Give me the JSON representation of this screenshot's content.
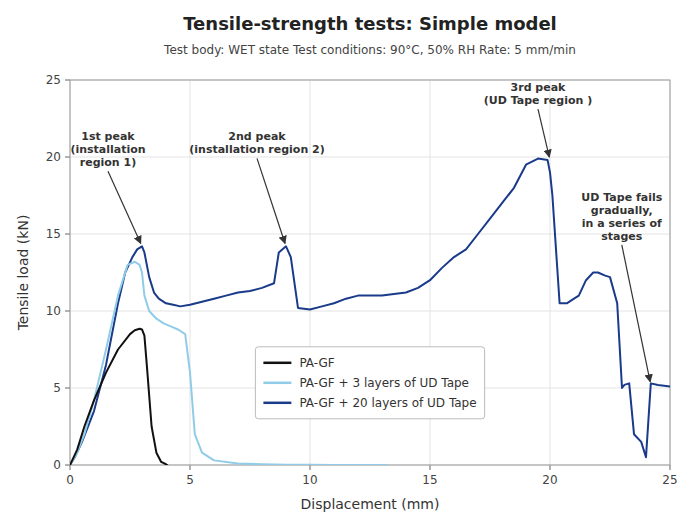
{
  "chart_data": {
    "type": "line",
    "title": "Tensile-strength tests: Simple model",
    "subtitle": "Test body: WET state   Test conditions: 90°C, 50% RH   Rate: 5 mm/min",
    "x_label": "Displacement  (mm)",
    "y_label": "Tensile load  (kN)",
    "xlim": [
      0,
      25
    ],
    "ylim": [
      0,
      25
    ],
    "xticks": [
      0,
      5,
      10,
      15,
      20,
      25
    ],
    "yticks": [
      0,
      5,
      10,
      15,
      20,
      25
    ],
    "grid": true,
    "legend": "lower center",
    "series": [
      {
        "name": "PA-GF",
        "color": "#111111",
        "x": [
          0,
          0.3,
          0.6,
          1.0,
          1.5,
          2.0,
          2.5,
          2.7,
          2.9,
          3.0,
          3.1,
          3.2,
          3.4,
          3.6,
          3.8,
          4.0,
          4.05
        ],
        "values": [
          0,
          1.0,
          2.5,
          4.2,
          6.0,
          7.5,
          8.5,
          8.75,
          8.85,
          8.8,
          8.4,
          6.5,
          2.5,
          0.8,
          0.2,
          0.05,
          0.0
        ]
      },
      {
        "name": "PA-GF + 3 layers of UD Tape",
        "color": "#90cce8",
        "x": [
          0,
          0.3,
          0.6,
          1.0,
          1.5,
          2.0,
          2.4,
          2.7,
          2.9,
          3.0,
          3.1,
          3.3,
          3.6,
          3.9,
          4.2,
          4.5,
          4.8,
          5.0,
          5.2,
          5.5,
          6.0,
          7.0,
          8.0,
          9.0,
          10.0,
          11.0,
          12.0,
          12.8,
          13.2
        ],
        "values": [
          0,
          0.8,
          2.0,
          4.2,
          7.5,
          11.0,
          13.0,
          13.2,
          13.0,
          12.5,
          11.0,
          10.0,
          9.5,
          9.2,
          9.0,
          8.8,
          8.5,
          6.0,
          2.0,
          0.8,
          0.3,
          0.1,
          0.05,
          0.02,
          0.01,
          0.005,
          0.002,
          0.001,
          0.0
        ]
      },
      {
        "name": "PA-GF + 20 layers of UD Tape",
        "color": "#1a3a8a",
        "x": [
          0,
          0.2,
          0.5,
          1.0,
          1.5,
          2.0,
          2.3,
          2.6,
          2.8,
          3.0,
          3.1,
          3.3,
          3.5,
          3.7,
          4.0,
          4.3,
          4.6,
          5.0,
          5.5,
          6.0,
          6.5,
          7.0,
          7.5,
          8.0,
          8.5,
          8.7,
          9.0,
          9.2,
          9.5,
          10.0,
          10.5,
          11.0,
          11.5,
          12.0,
          12.5,
          13.0,
          13.5,
          14.0,
          14.5,
          15.0,
          15.5,
          16.0,
          16.5,
          17.0,
          17.5,
          18.0,
          18.5,
          19.0,
          19.5,
          19.9,
          20.0,
          20.1,
          20.4,
          20.7,
          21.0,
          21.2,
          21.5,
          21.8,
          22.0,
          22.3,
          22.5,
          22.8,
          23.0,
          23.1,
          23.3,
          23.5,
          23.8,
          24.0,
          24.2,
          24.5,
          25.0
        ],
        "values": [
          0,
          0.5,
          1.5,
          3.5,
          6.5,
          10.5,
          12.5,
          13.5,
          14.0,
          14.2,
          13.8,
          12.2,
          11.2,
          10.8,
          10.5,
          10.4,
          10.3,
          10.4,
          10.6,
          10.8,
          11.0,
          11.2,
          11.3,
          11.5,
          11.8,
          13.8,
          14.2,
          13.5,
          10.2,
          10.1,
          10.3,
          10.5,
          10.8,
          11.0,
          11.0,
          11.0,
          11.1,
          11.2,
          11.5,
          12.0,
          12.8,
          13.5,
          14.0,
          15.0,
          16.0,
          17.0,
          18.0,
          19.5,
          19.9,
          19.8,
          19.0,
          17.5,
          10.5,
          10.5,
          10.8,
          11.0,
          12.0,
          12.5,
          12.5,
          12.3,
          12.2,
          10.5,
          5.0,
          5.2,
          5.3,
          2.0,
          1.5,
          0.5,
          5.3,
          5.2,
          5.1
        ]
      }
    ],
    "annotations": [
      {
        "text": "1st peak\n(installation\nregion 1)",
        "x": 3.0,
        "y": 14.2
      },
      {
        "text": "2nd peak\n(installation region 2)",
        "x": 9.0,
        "y": 14.2
      },
      {
        "text": "3rd peak\n(UD Tape region )",
        "x": 20.0,
        "y": 19.8
      },
      {
        "text": "UD Tape fails\ngradually,\nin a series of\nstages",
        "x": 24.2,
        "y": 5.2
      }
    ]
  }
}
